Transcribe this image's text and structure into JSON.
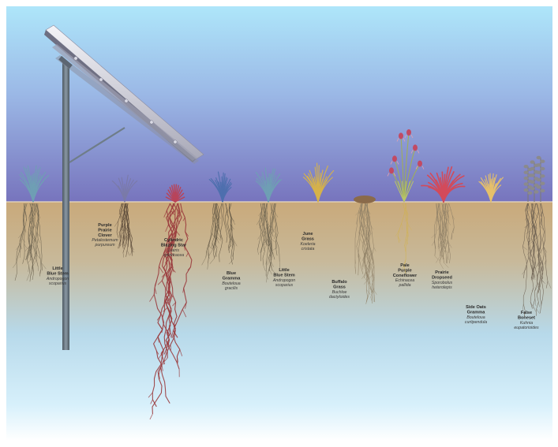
{
  "plants": [
    {
      "id": "little-blue-stem-left",
      "lines": [
        "Little",
        "Blue Stem"
      ],
      "latin": [
        "Andropogon",
        "scoparius"
      ]
    },
    {
      "id": "purple-prairie-clover",
      "lines": [
        "Purple",
        "Prairie",
        "Clover"
      ],
      "latin": [
        "Petalostemum",
        "purpureum"
      ]
    },
    {
      "id": "cylindric-blazing-star",
      "lines": [
        "Cylindric",
        "Blazing Star"
      ],
      "latin": [
        "Liatris",
        "cylindracea"
      ]
    },
    {
      "id": "blue-gramma",
      "lines": [
        "Blue",
        "Gramma"
      ],
      "latin": [
        "Bouteloua",
        "gracilis"
      ]
    },
    {
      "id": "little-blue-stem-right",
      "lines": [
        "Little",
        "Blue Stem"
      ],
      "latin": [
        "Andropogon",
        "scoparius"
      ]
    },
    {
      "id": "june-grass",
      "lines": [
        "June",
        "Grass"
      ],
      "latin": [
        "Koeleria",
        "cristata"
      ]
    },
    {
      "id": "buffalo-grass",
      "lines": [
        "Buffalo",
        "Grass"
      ],
      "latin": [
        "Buchloe",
        "dactyloides"
      ]
    },
    {
      "id": "pale-purple-coneflower",
      "lines": [
        "Pale",
        "Purple",
        "Coneflower"
      ],
      "latin": [
        "Echinacea",
        "pallida"
      ]
    },
    {
      "id": "prairie-dropseed",
      "lines": [
        "Prairie",
        "Dropseed"
      ],
      "latin": [
        "Sporobolus",
        "heterolepis"
      ]
    },
    {
      "id": "side-oats-gramma",
      "lines": [
        "Side Oats",
        "Gramma"
      ],
      "latin": [
        "Bouteloua",
        "curtipendula"
      ]
    },
    {
      "id": "false-boneset",
      "lines": [
        "False",
        "Boneset"
      ],
      "latin": [
        "Kuhnia",
        "eupatorioides"
      ]
    }
  ],
  "colors": {
    "sky_top": "#a9e3f8",
    "sky_bottom": "#7b79bf",
    "soil_top": "#c8aa7c",
    "soil_bottom": "#b9dff0",
    "root_grass": "#6d6048",
    "root_red": "#9a3a3c",
    "pole": "#6a7680"
  }
}
